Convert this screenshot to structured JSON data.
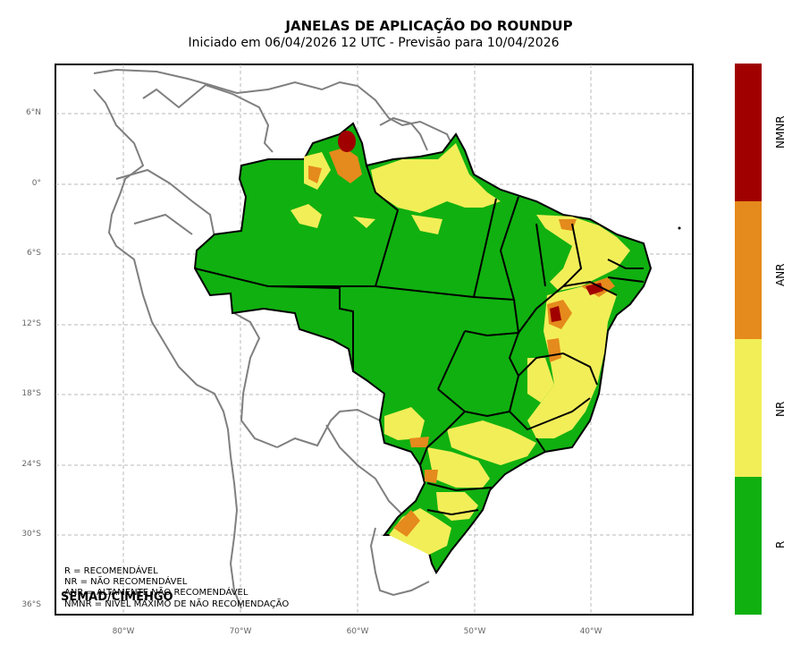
{
  "title": "JANELAS DE APLICAÇÃO DO ROUNDUP",
  "subtitle": "Iniciado em 06/04/2026 12 UTC - Previsão para 10/04/2026",
  "lat_ticks": [
    "6°N",
    "0°",
    "6°S",
    "12°S",
    "18°S",
    "24°S",
    "30°S",
    "36°S"
  ],
  "lon_ticks": [
    "80°W",
    "70°W",
    "60°W",
    "50°W",
    "40°W"
  ],
  "legend": {
    "r": "R = RECOMENDÁVEL",
    "nr": "NR = NÃO RECOMENDÁVEL",
    "anr": "ANR = ALTAMENTE NÃO RECOMENDÁVEL",
    "nmnr": "NMNR = NÍVEL MÁXIMO DE NÃO RECOMENDAÇÃO"
  },
  "credit": "SEMAD/CIMEHGO",
  "colorbar": [
    {
      "label": "NMNR",
      "color": "#a00000"
    },
    {
      "label": "ANR",
      "color": "#e58a1c"
    },
    {
      "label": "NR",
      "color": "#f2ee58"
    },
    {
      "label": "R",
      "color": "#10b010"
    }
  ],
  "colors": {
    "grid": "#b8b8b8",
    "country_border": "#7f7f7f",
    "state_border": "#000000"
  }
}
